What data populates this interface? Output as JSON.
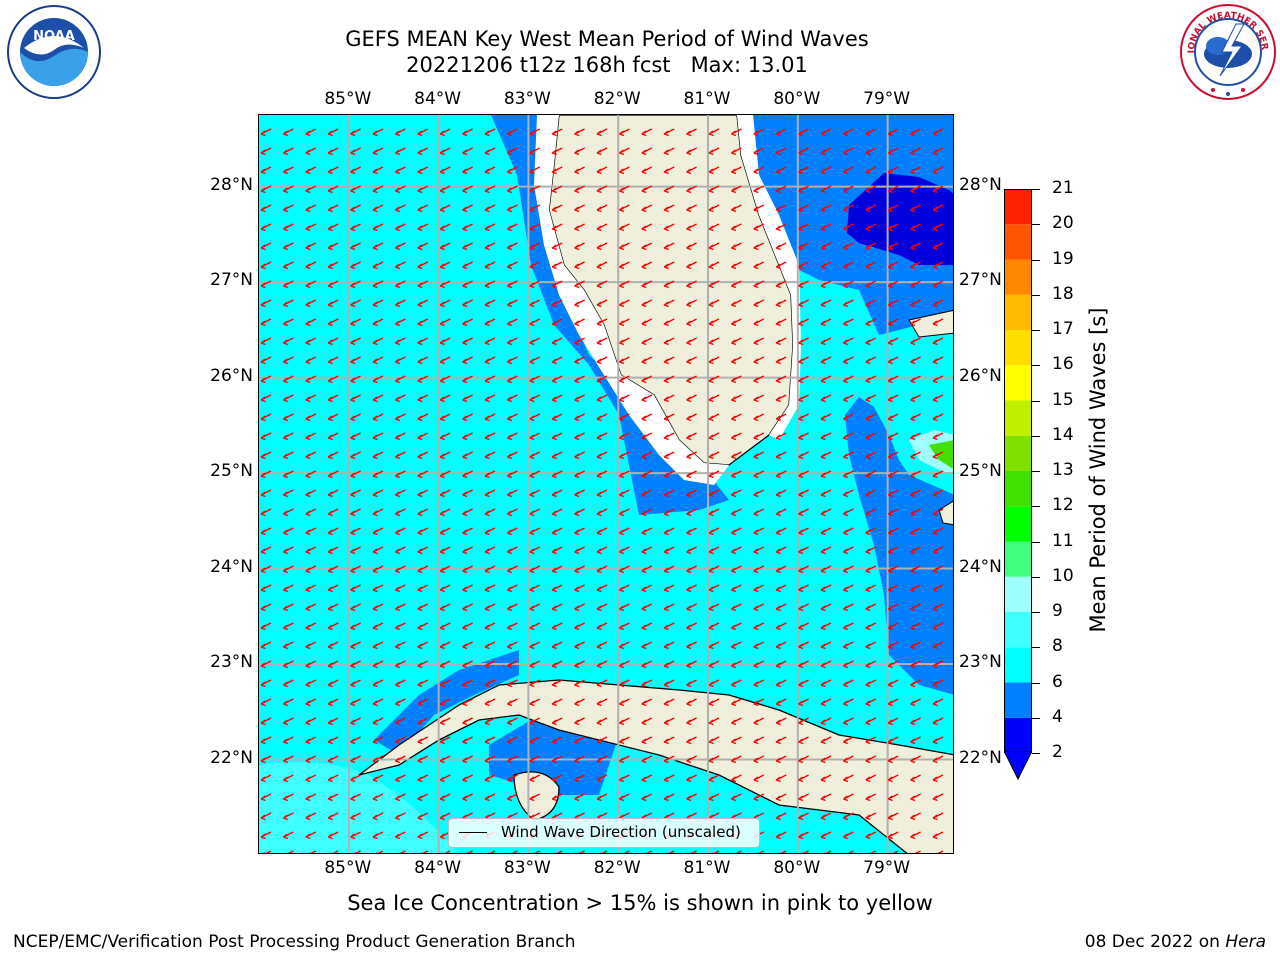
{
  "title": {
    "line1": "GEFS MEAN Key West Mean Period of Wind Waves",
    "line2": "20221206 t12z 168h fcst   Max: 13.01"
  },
  "logos": {
    "left": {
      "name": "noaa-logo",
      "text": "NOAA",
      "ring_text": "NATIONAL OCEANIC AND ATMOSPHERIC ADMINISTRATION · U.S. DEPARTMENT OF COMMERCE"
    },
    "right": {
      "name": "nws-logo",
      "ring_text": "NATIONAL WEATHER SERVICE"
    }
  },
  "map": {
    "lon_labels": [
      "85°W",
      "84°W",
      "83°W",
      "82°W",
      "81°W",
      "80°W",
      "79°W"
    ],
    "lat_labels": [
      "28°N",
      "27°N",
      "26°N",
      "25°N",
      "24°N",
      "23°N",
      "22°N"
    ],
    "extent": {
      "lon_min": -86.0,
      "lon_max": -78.25,
      "lat_min": 21.0,
      "lat_max": 28.75
    },
    "lon_ticks": [
      -85,
      -84,
      -83,
      -82,
      -81,
      -80,
      -79
    ],
    "lat_ticks": [
      28,
      27,
      26,
      25,
      24,
      23,
      22
    ],
    "gridlines": true,
    "arrow_color": "#ff0000",
    "land_color": "#efefdb",
    "coast_color": "#000000",
    "wind_direction": "toward west-southwest",
    "legend_label": "Wind Wave Direction (unscaled)"
  },
  "colorbar": {
    "title": "Mean Period of Wind Waves [s]",
    "ticks": [
      "2",
      "4",
      "6",
      "8",
      "9",
      "10",
      "11",
      "12",
      "13",
      "14",
      "15",
      "16",
      "17",
      "18",
      "19",
      "20",
      "21"
    ],
    "colors": [
      "#0000ff",
      "#0080ff",
      "#00ffff",
      "#40ffff",
      "#a0ffff",
      "#40ff80",
      "#00ff00",
      "#40e000",
      "#80e000",
      "#c0f000",
      "#ffff00",
      "#ffdd00",
      "#ffbb00",
      "#ff8800",
      "#ff5500",
      "#ff2200"
    ],
    "extend": "min"
  },
  "notes": {
    "sea_ice": "Sea Ice Concentration > 15% is shown in pink to yellow"
  },
  "footer": {
    "left": "NCEP/EMC/Verification Post Processing Product Generation Branch",
    "date": "08 Dec 2022 on ",
    "host": "Hera"
  }
}
